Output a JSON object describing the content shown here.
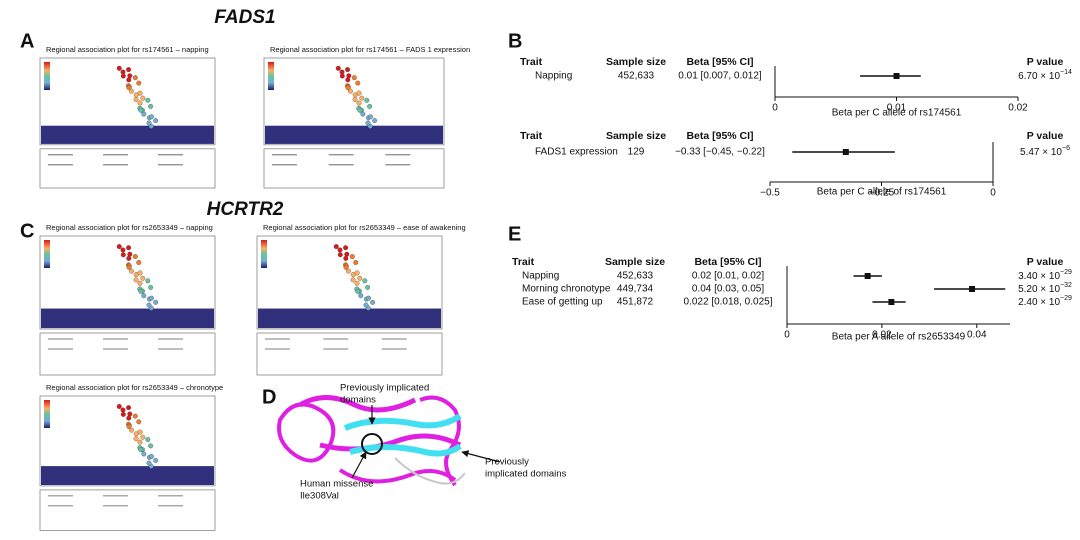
{
  "figure": {
    "labels": {
      "a": "A",
      "b": "B",
      "c": "C",
      "d": "D",
      "e": "E"
    },
    "gene_a": "FADS1",
    "gene_c": "HCRTR2",
    "panel_a_titles": [
      "Regional association plot for rs174561 – napping",
      "Regional association plot for rs174561 – FADS 1 expression"
    ],
    "panel_c_titles": [
      "Regional association plot for rs2653349 – napping",
      "Regional association plot for rs2653349 – ease of awakening",
      "Regional association plot for rs2653349 – chronotype"
    ],
    "panel_d": {
      "top": [
        "Previously implicated",
        "domains"
      ],
      "left": [
        "Human missense",
        "Ile308Val"
      ],
      "right": [
        "Previously",
        "implicated domains"
      ]
    }
  },
  "chart_data": [
    {
      "type": "forest",
      "headers": {
        "trait": "Trait",
        "sample_size": "Sample size",
        "beta": "Beta [95% CI]",
        "p_value": "P value"
      },
      "rows": [
        {
          "trait": "Napping",
          "sample_size": "452,633",
          "ci_text": "0.01 [0.007, 0.012]",
          "beta": 0.01,
          "ci": [
            0.007,
            0.012
          ],
          "p_value": "6.70 × 10",
          "p_exponent": "−14"
        }
      ],
      "xlim": [
        0,
        0.02
      ],
      "xticks": [
        0,
        0.01,
        0.02
      ],
      "xlabel": "Beta per C allele of rs174561"
    },
    {
      "type": "forest",
      "headers": {
        "trait": "Trait",
        "sample_size": "Sample size",
        "beta": "Beta [95% CI]",
        "p_value": "P value"
      },
      "rows": [
        {
          "trait": "FADS1 expression",
          "sample_size": "129",
          "ci_text": "−0.33 [−0.45, −0.22]",
          "beta": -0.33,
          "ci": [
            -0.45,
            -0.22
          ],
          "p_value": "5.47 × 10",
          "p_exponent": "−6"
        }
      ],
      "xlim": [
        -0.5,
        0
      ],
      "xticks": [
        {
          "value": -0.5,
          "label": "−0.5"
        },
        {
          "value": -0.25,
          "label": "−0.25"
        },
        0
      ],
      "xlabel": "Beta per C allele of rs174561"
    },
    {
      "type": "forest",
      "headers": {
        "trait": "Trait",
        "sample_size": "Sample size",
        "beta": "Beta [95% CI]",
        "p_value": "P value"
      },
      "rows": [
        {
          "trait": "Napping",
          "sample_size": "452,633",
          "ci_text": "0.02 [0.01, 0.02]",
          "beta": 0.017,
          "ci": [
            0.014,
            0.02
          ],
          "p_value": "3.40 × 10",
          "p_exponent": "−29"
        },
        {
          "trait": "Morning chronotype",
          "sample_size": "449,734",
          "ci_text": "0.04 [0.03, 0.05]",
          "beta": 0.039,
          "ci": [
            0.031,
            0.046
          ],
          "p_value": "5.20 × 10",
          "p_exponent": "−32"
        },
        {
          "trait": "Ease of getting up",
          "sample_size": "451,872",
          "ci_text": "0.022 [0.018, 0.025]",
          "beta": 0.022,
          "ci": [
            0.018,
            0.025
          ],
          "p_value": "2.40 × 10",
          "p_exponent": "−29"
        }
      ],
      "xlim": [
        0,
        0.047
      ],
      "xticks": [
        0,
        0.02,
        0.04
      ],
      "xlabel": "Beta per A allele of rs2653349"
    }
  ]
}
